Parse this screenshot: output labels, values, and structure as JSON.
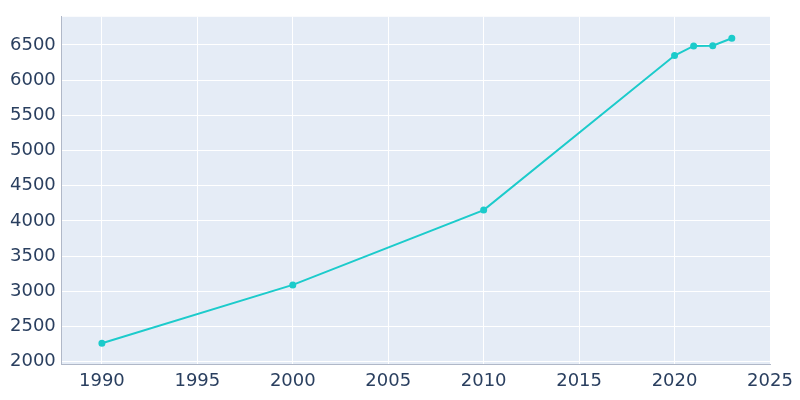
{
  "chart_data": {
    "type": "line",
    "x": [
      1990,
      2000,
      2010,
      2020,
      2021,
      2022,
      2023
    ],
    "values": [
      2260,
      3090,
      4153,
      6350,
      6486,
      6490,
      6595
    ],
    "color": "#1ccbcb",
    "marker": "circle",
    "xlim": [
      1987.9,
      2025
    ],
    "xticks": [
      1990,
      1995,
      2000,
      2005,
      2010,
      2015,
      2020,
      2025
    ],
    "ylim": [
      1960,
      6900
    ],
    "yticks": [
      2000,
      2500,
      3000,
      3500,
      4000,
      4500,
      5000,
      5500,
      6000,
      6500
    ],
    "grid": true
  }
}
